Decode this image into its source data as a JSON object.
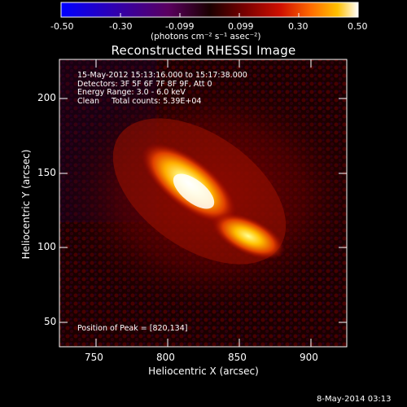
{
  "colorbar": {
    "ticks": [
      "-0.50",
      "-0.30",
      "-0.099",
      "0.099",
      "0.30",
      "0.50"
    ],
    "units": "(photons cm⁻² s⁻¹ asec⁻²)",
    "colors": [
      "#0000ff",
      "#2a00b0",
      "#5b0070",
      "#000000",
      "#3a0000",
      "#8a0000",
      "#d42000",
      "#ff7000",
      "#ffc000",
      "#ffffff"
    ]
  },
  "plot": {
    "title": "Reconstructed RHESSI Image",
    "xlabel": "Heliocentric X (arcsec)",
    "ylabel": "Heliocentric Y (arcsec)",
    "xticks": [
      "750",
      "800",
      "850",
      "900"
    ],
    "yticks": [
      "50",
      "100",
      "150",
      "200"
    ],
    "info_lines": [
      "15-May-2012 15:13:16.000 to 15:17:38.000",
      "Detectors: 3F 5F 6F 7F 8F 9F, Att 0",
      "Energy Range: 3.0 - 6.0 keV",
      "Clean     Total counts: 5.39E+04"
    ],
    "peak_label": "Position of Peak = [820,134]"
  },
  "footer": {
    "timestamp": "8-May-2014 03:13"
  }
}
